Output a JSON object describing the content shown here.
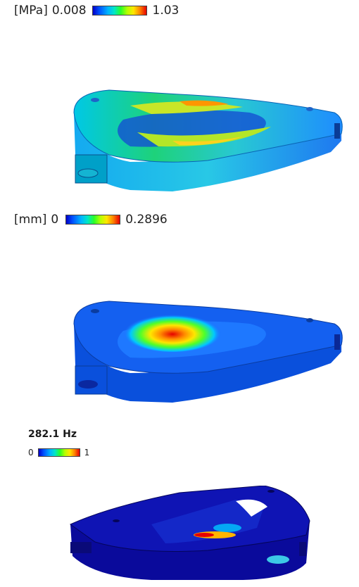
{
  "stress_legend": {
    "unit": "[MPa]",
    "min": "0.008",
    "max": "1.03"
  },
  "displacement_legend": {
    "unit": "[mm]",
    "min": "0",
    "max": "0.2896"
  },
  "modal_legend": {
    "frequency": "282.1 Hz",
    "min": "0",
    "max": "1"
  },
  "colors": {
    "scale_low": "#0000c8",
    "scale_mid": "#28ff28",
    "scale_high": "#e60000",
    "background": "#ffffff"
  }
}
